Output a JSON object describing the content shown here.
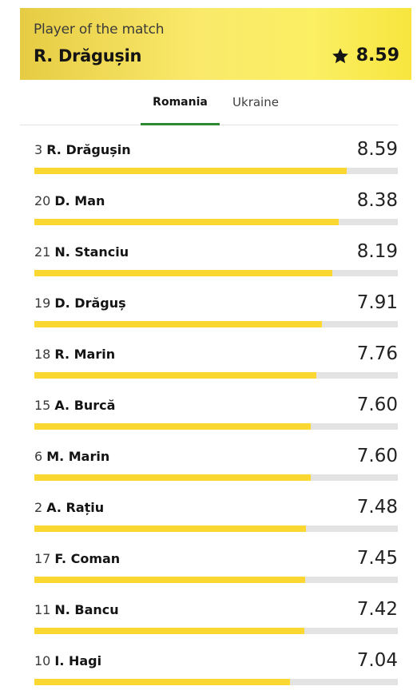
{
  "motm": {
    "label": "Player of the match",
    "name": "R. Drăgușin",
    "rating": "8.59"
  },
  "tabs": [
    {
      "label": "Romania",
      "active": true
    },
    {
      "label": "Ukraine",
      "active": false
    }
  ],
  "colors": {
    "accent_yellow": "#fcd631",
    "tab_underline_green": "#2d8a32",
    "track_gray": "#e3e3e3"
  },
  "scale_max": 10,
  "players": [
    {
      "number": "3",
      "name": "R. Drăgușin",
      "rating": "8.59",
      "value": 8.59
    },
    {
      "number": "20",
      "name": "D. Man",
      "rating": "8.38",
      "value": 8.38
    },
    {
      "number": "21",
      "name": "N. Stanciu",
      "rating": "8.19",
      "value": 8.19
    },
    {
      "number": "19",
      "name": "D. Drăguș",
      "rating": "7.91",
      "value": 7.91
    },
    {
      "number": "18",
      "name": "R. Marin",
      "rating": "7.76",
      "value": 7.76
    },
    {
      "number": "15",
      "name": "A. Burcă",
      "rating": "7.60",
      "value": 7.6
    },
    {
      "number": "6",
      "name": "M. Marin",
      "rating": "7.60",
      "value": 7.6
    },
    {
      "number": "2",
      "name": "A. Rațiu",
      "rating": "7.48",
      "value": 7.48
    },
    {
      "number": "17",
      "name": "F. Coman",
      "rating": "7.45",
      "value": 7.45
    },
    {
      "number": "11",
      "name": "N. Bancu",
      "rating": "7.42",
      "value": 7.42
    },
    {
      "number": "10",
      "name": "I. Hagi",
      "rating": "7.04",
      "value": 7.04
    }
  ]
}
